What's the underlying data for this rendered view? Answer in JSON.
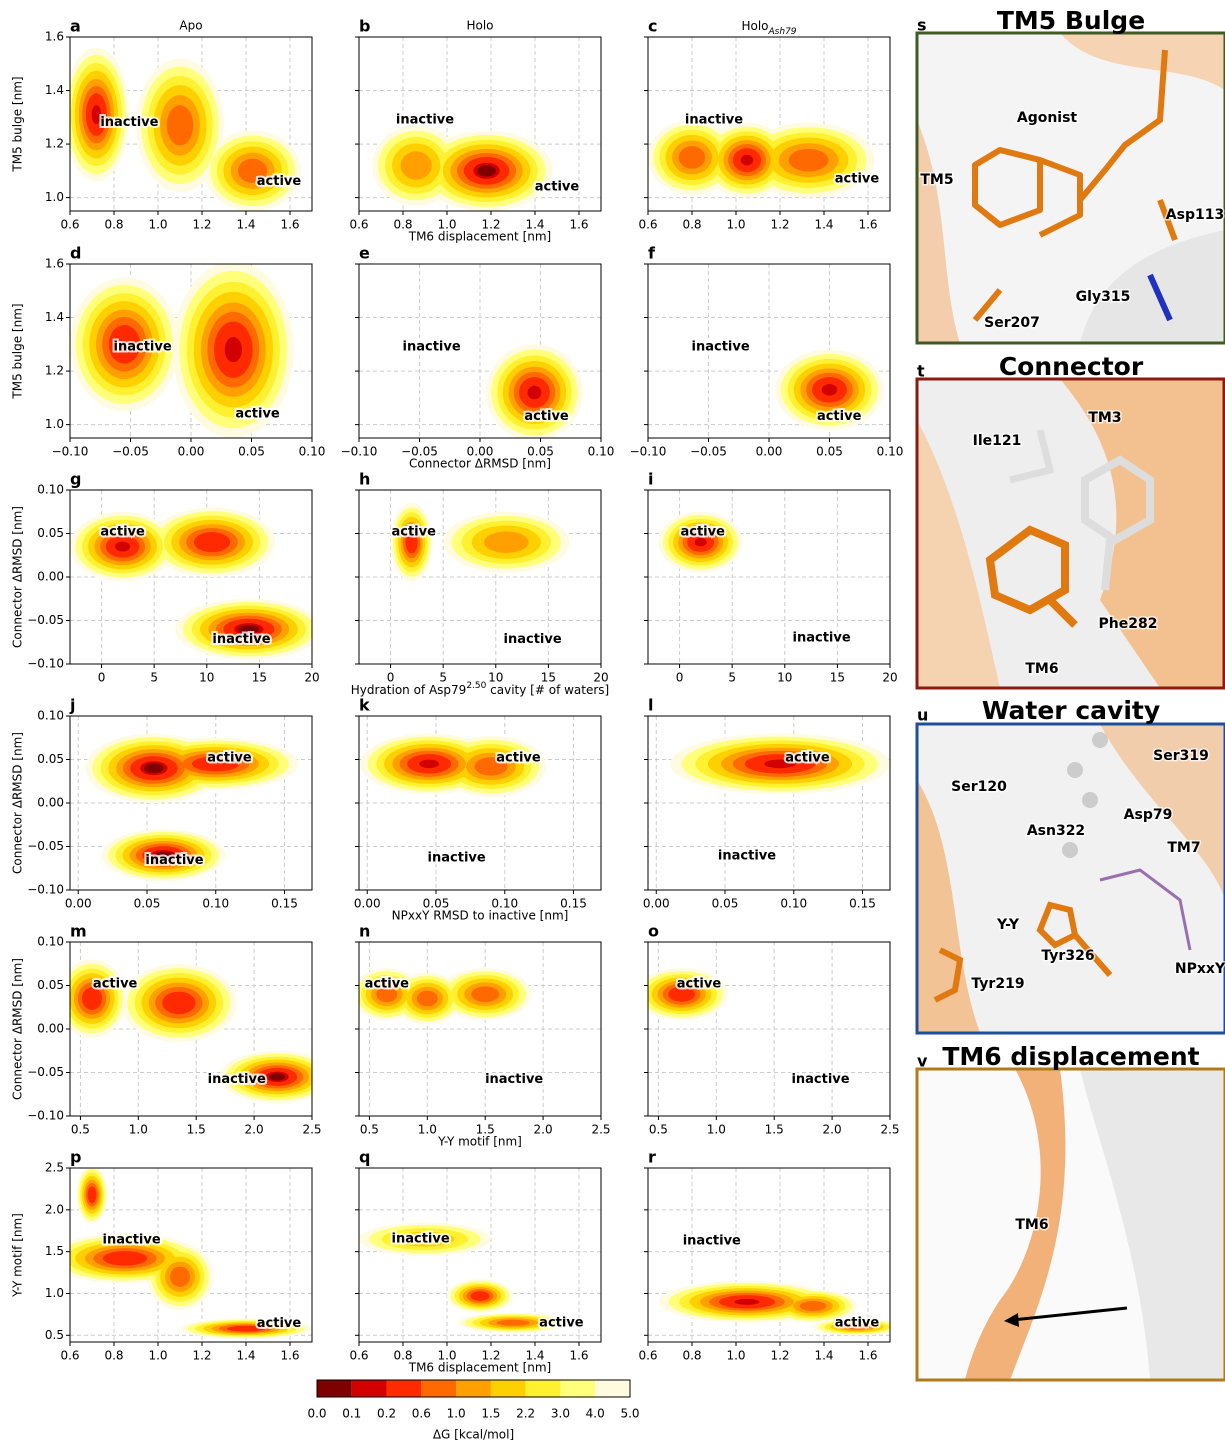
{
  "chart_data": [
    {
      "type": "contour",
      "letter": "a",
      "title": "Apo",
      "ylabel": "TM5 bulge [nm]",
      "xlim": [
        0.6,
        1.7
      ],
      "ylim": [
        0.95,
        1.6
      ],
      "xticks": [
        0.6,
        0.8,
        {
          "value": 1,
          "label": "1.0"
        },
        1.2,
        1.4,
        1.6
      ],
      "yticks": [
        {
          "value": 1,
          "label": "1.0"
        },
        1.2,
        1.4,
        1.6
      ],
      "grid": true,
      "basins": [
        {
          "x": 0.72,
          "y": 1.31,
          "rx": 0.15,
          "ry": 0.25,
          "min": 0.1
        },
        {
          "x": 1.1,
          "y": 1.27,
          "rx": 0.2,
          "ry": 0.25,
          "min": 0.6
        },
        {
          "x": 1.43,
          "y": 1.1,
          "rx": 0.22,
          "ry": 0.15,
          "min": 0.6
        }
      ],
      "annotations": [
        {
          "text": "inactive",
          "x": 0.87,
          "y": 1.28
        },
        {
          "text": "active",
          "x": 1.55,
          "y": 1.06
        }
      ]
    },
    {
      "type": "contour",
      "letter": "b",
      "title": "Holo",
      "xlabel": "TM6 displacement [nm]",
      "xlim": [
        0.6,
        1.7
      ],
      "xticks": [
        0.6,
        0.8,
        {
          "value": 1,
          "label": "1.0"
        },
        1.2,
        1.4,
        1.6
      ],
      "grid": true,
      "basins": [
        {
          "x": 0.86,
          "y": 1.12,
          "rx": 0.2,
          "ry": 0.15,
          "min": 1.0
        },
        {
          "x": 1.18,
          "y": 1.1,
          "rx": 0.3,
          "ry": 0.15,
          "min": 0.0
        }
      ],
      "annotations": [
        {
          "text": "inactive",
          "x": 0.9,
          "y": 1.29
        },
        {
          "text": "active",
          "x": 1.5,
          "y": 1.04
        }
      ]
    },
    {
      "type": "contour",
      "letter": "c",
      "title": [
        {
          "text": "Holo"
        },
        {
          "text": "Ash79",
          "sub": true
        }
      ],
      "xlim": [
        0.6,
        1.7
      ],
      "xticks": [
        0.6,
        0.8,
        {
          "value": 1,
          "label": "1.0"
        },
        1.2,
        1.4,
        1.6
      ],
      "grid": true,
      "basins": [
        {
          "x": 0.8,
          "y": 1.15,
          "rx": 0.2,
          "ry": 0.14,
          "min": 0.6
        },
        {
          "x": 1.05,
          "y": 1.14,
          "rx": 0.2,
          "ry": 0.14,
          "min": 0.1
        },
        {
          "x": 1.33,
          "y": 1.14,
          "rx": 0.3,
          "ry": 0.14,
          "min": 0.6
        }
      ],
      "annotations": [
        {
          "text": "inactive",
          "x": 0.9,
          "y": 1.29
        },
        {
          "text": "active",
          "x": 1.55,
          "y": 1.07
        }
      ]
    },
    {
      "type": "contour",
      "letter": "d",
      "ylabel": "TM5 bulge [nm]",
      "xlim": [
        -0.1,
        0.1
      ],
      "ylim": [
        0.95,
        1.6
      ],
      "xticks": [
        {
          "value": -0.1,
          "label": "−0.10"
        },
        {
          "value": -0.05,
          "label": "−0.05"
        },
        {
          "value": 0,
          "label": "0.00"
        },
        0.05,
        {
          "value": 0.1,
          "label": "0.10"
        }
      ],
      "yticks": [
        {
          "value": 1,
          "label": "1.0"
        },
        1.2,
        1.4,
        1.6
      ],
      "grid": true,
      "basins": [
        {
          "x": -0.055,
          "y": 1.3,
          "rx": 0.045,
          "ry": 0.25,
          "min": 0.2
        },
        {
          "x": 0.035,
          "y": 1.28,
          "rx": 0.05,
          "ry": 0.33,
          "min": 0.1
        }
      ],
      "annotations": [
        {
          "text": "inactive",
          "x": -0.04,
          "y": 1.29
        },
        {
          "text": "active",
          "x": 0.055,
          "y": 1.04
        }
      ]
    },
    {
      "type": "contour",
      "letter": "e",
      "xlabel": "Connector ΔRMSD [nm]",
      "xlim": [
        -0.1,
        0.1
      ],
      "xticks": [
        {
          "value": -0.1,
          "label": "−0.10"
        },
        {
          "value": -0.05,
          "label": "−0.05"
        },
        {
          "value": 0,
          "label": "0.00"
        },
        0.05,
        {
          "value": 0.1,
          "label": "0.10"
        }
      ],
      "grid": true,
      "basins": [
        {
          "x": 0.045,
          "y": 1.12,
          "rx": 0.04,
          "ry": 0.18,
          "min": 0.1
        }
      ],
      "annotations": [
        {
          "text": "inactive",
          "x": -0.04,
          "y": 1.29
        },
        {
          "text": "active",
          "x": 0.055,
          "y": 1.03
        }
      ]
    },
    {
      "type": "contour",
      "letter": "f",
      "xlim": [
        -0.1,
        0.1
      ],
      "xticks": [
        {
          "value": -0.1,
          "label": "−0.10"
        },
        {
          "value": -0.05,
          "label": "−0.05"
        },
        {
          "value": 0,
          "label": "0.00"
        },
        0.05,
        {
          "value": 0.1,
          "label": "0.10"
        }
      ],
      "grid": true,
      "basins": [
        {
          "x": 0.05,
          "y": 1.13,
          "rx": 0.045,
          "ry": 0.15,
          "min": 0.1
        }
      ],
      "annotations": [
        {
          "text": "inactive",
          "x": -0.04,
          "y": 1.29
        },
        {
          "text": "active",
          "x": 0.058,
          "y": 1.03
        }
      ]
    },
    {
      "type": "contour",
      "letter": "g",
      "ylabel": "Connector ΔRMSD [nm]",
      "xlim": [
        -3,
        20
      ],
      "ylim": [
        -0.1,
        0.1
      ],
      "xticks": [
        0,
        5,
        10,
        15,
        20
      ],
      "yticks": [
        {
          "value": -0.1,
          "label": "−0.10"
        },
        {
          "value": -0.05,
          "label": "−0.05"
        },
        {
          "value": 0,
          "label": "0.00"
        },
        0.05,
        {
          "value": 0.1,
          "label": "0.10"
        }
      ],
      "grid": true,
      "basins": [
        {
          "x": 2,
          "y": 0.035,
          "rx": 5,
          "ry": 0.04,
          "min": 0.1
        },
        {
          "x": 10.5,
          "y": 0.04,
          "rx": 6,
          "ry": 0.04,
          "min": 0.2
        },
        {
          "x": 14,
          "y": -0.06,
          "rx": 7,
          "ry": 0.035,
          "min": 0.0
        }
      ],
      "annotations": [
        {
          "text": "active",
          "x": 2,
          "y": 0.052
        },
        {
          "text": "inactive",
          "x": 13.3,
          "y": -0.072
        }
      ]
    },
    {
      "type": "contour",
      "letter": "h",
      "xlabel": [
        {
          "text": "Hydration of Asp79"
        },
        {
          "text": "2.50",
          "sup": true
        },
        {
          "text": " cavity [# of waters]"
        }
      ],
      "xlim": [
        -3,
        20
      ],
      "xticks": [
        0,
        5,
        10,
        15,
        20
      ],
      "grid": true,
      "basins": [
        {
          "x": 2,
          "y": 0.04,
          "rx": 2,
          "ry": 0.045,
          "min": 0.2
        },
        {
          "x": 11,
          "y": 0.04,
          "rx": 6,
          "ry": 0.035,
          "min": 1.0
        }
      ],
      "annotations": [
        {
          "text": "active",
          "x": 2.2,
          "y": 0.052
        },
        {
          "text": "inactive",
          "x": 13.5,
          "y": -0.072
        }
      ]
    },
    {
      "type": "contour",
      "letter": "i",
      "xlim": [
        -3,
        20
      ],
      "xticks": [
        0,
        5,
        10,
        15,
        20
      ],
      "grid": true,
      "basins": [
        {
          "x": 2,
          "y": 0.04,
          "rx": 4,
          "ry": 0.035,
          "min": 0.1
        }
      ],
      "annotations": [
        {
          "text": "active",
          "x": 2.2,
          "y": 0.052
        },
        {
          "text": "inactive",
          "x": 13.5,
          "y": -0.07
        }
      ]
    },
    {
      "type": "contour",
      "letter": "j",
      "ylabel": "Connector ΔRMSD [nm]",
      "xlim": [
        -0.006,
        0.17
      ],
      "ylim": [
        -0.1,
        0.1
      ],
      "xticks": [
        {
          "value": 0,
          "label": "0.00"
        },
        0.05,
        {
          "value": 0.1,
          "label": "0.10"
        },
        0.15
      ],
      "yticks": [
        {
          "value": -0.1,
          "label": "−0.10"
        },
        {
          "value": -0.05,
          "label": "−0.05"
        },
        {
          "value": 0,
          "label": "0.00"
        },
        0.05,
        {
          "value": 0.1,
          "label": "0.10"
        }
      ],
      "grid": true,
      "basins": [
        {
          "x": 0.055,
          "y": 0.04,
          "rx": 0.05,
          "ry": 0.04,
          "min": 0.0
        },
        {
          "x": 0.1,
          "y": 0.045,
          "rx": 0.06,
          "ry": 0.03,
          "min": 0.2
        },
        {
          "x": 0.062,
          "y": -0.06,
          "rx": 0.045,
          "ry": 0.03,
          "min": 0.0
        }
      ],
      "annotations": [
        {
          "text": "active",
          "x": 0.11,
          "y": 0.052
        },
        {
          "text": "inactive",
          "x": 0.07,
          "y": -0.066
        }
      ]
    },
    {
      "type": "contour",
      "letter": "k",
      "xlabel": "NPxxY RMSD to inactive [nm]",
      "xlim": [
        -0.006,
        0.17
      ],
      "xticks": [
        {
          "value": 0,
          "label": "0.00"
        },
        0.05,
        {
          "value": 0.1,
          "label": "0.10"
        },
        0.15
      ],
      "grid": true,
      "basins": [
        {
          "x": 0.045,
          "y": 0.045,
          "rx": 0.05,
          "ry": 0.035,
          "min": 0.1
        },
        {
          "x": 0.09,
          "y": 0.042,
          "rx": 0.04,
          "ry": 0.035,
          "min": 0.6
        }
      ],
      "annotations": [
        {
          "text": "active",
          "x": 0.11,
          "y": 0.052
        },
        {
          "text": "inactive",
          "x": 0.065,
          "y": -0.063
        }
      ]
    },
    {
      "type": "contour",
      "letter": "l",
      "xlim": [
        -0.006,
        0.17
      ],
      "xticks": [
        {
          "value": 0,
          "label": "0.00"
        },
        0.05,
        {
          "value": 0.1,
          "label": "0.10"
        },
        0.15
      ],
      "grid": true,
      "basins": [
        {
          "x": 0.09,
          "y": 0.045,
          "rx": 0.08,
          "ry": 0.035,
          "min": 0.1
        }
      ],
      "annotations": [
        {
          "text": "active",
          "x": 0.11,
          "y": 0.052
        },
        {
          "text": "inactive",
          "x": 0.066,
          "y": -0.061
        }
      ]
    },
    {
      "type": "contour",
      "letter": "m",
      "ylabel": "Connector ΔRMSD [nm]",
      "xlim": [
        0.41,
        2.5
      ],
      "ylim": [
        -0.1,
        0.1
      ],
      "xticks": [
        0.5,
        {
          "value": 1,
          "label": "1.0"
        },
        1.5,
        {
          "value": 2,
          "label": "2.0"
        },
        2.5
      ],
      "yticks": [
        {
          "value": -0.1,
          "label": "−0.10"
        },
        {
          "value": -0.05,
          "label": "−0.05"
        },
        {
          "value": 0,
          "label": "0.00"
        },
        0.05,
        {
          "value": 0.1,
          "label": "0.10"
        }
      ],
      "grid": true,
      "basins": [
        {
          "x": 0.6,
          "y": 0.035,
          "rx": 0.3,
          "ry": 0.045,
          "min": 0.2
        },
        {
          "x": 1.35,
          "y": 0.03,
          "rx": 0.5,
          "ry": 0.045,
          "min": 0.2
        },
        {
          "x": 2.2,
          "y": -0.055,
          "rx": 0.5,
          "ry": 0.03,
          "min": 0.0
        }
      ],
      "annotations": [
        {
          "text": "active",
          "x": 0.8,
          "y": 0.052
        },
        {
          "text": "inactive",
          "x": 1.85,
          "y": -0.058
        }
      ]
    },
    {
      "type": "contour",
      "letter": "n",
      "xlabel": "Y-Y motif [nm]",
      "xlim": [
        0.41,
        2.5
      ],
      "xticks": [
        0.5,
        {
          "value": 1,
          "label": "1.0"
        },
        1.5,
        {
          "value": 2,
          "label": "2.0"
        },
        2.5
      ],
      "grid": true,
      "basins": [
        {
          "x": 0.65,
          "y": 0.04,
          "rx": 0.3,
          "ry": 0.03,
          "min": 0.6
        },
        {
          "x": 1.0,
          "y": 0.035,
          "rx": 0.3,
          "ry": 0.03,
          "min": 0.6
        },
        {
          "x": 1.5,
          "y": 0.04,
          "rx": 0.4,
          "ry": 0.03,
          "min": 0.6
        }
      ],
      "annotations": [
        {
          "text": "active",
          "x": 0.65,
          "y": 0.052
        },
        {
          "text": "inactive",
          "x": 1.75,
          "y": -0.058
        }
      ]
    },
    {
      "type": "contour",
      "letter": "o",
      "xlim": [
        0.41,
        2.5
      ],
      "xticks": [
        0.5,
        {
          "value": 1,
          "label": "1.0"
        },
        1.5,
        {
          "value": 2,
          "label": "2.0"
        },
        2.5
      ],
      "grid": true,
      "basins": [
        {
          "x": 0.7,
          "y": 0.04,
          "rx": 0.4,
          "ry": 0.03,
          "min": 0.2
        }
      ],
      "annotations": [
        {
          "text": "active",
          "x": 0.85,
          "y": 0.052
        },
        {
          "text": "inactive",
          "x": 1.9,
          "y": -0.058
        }
      ]
    },
    {
      "type": "contour",
      "letter": "p",
      "ylabel": "Y-Y motif [nm]",
      "xlim": [
        0.6,
        1.7
      ],
      "ylim": [
        0.42,
        2.5
      ],
      "xticks": [
        0.6,
        0.8,
        {
          "value": 1,
          "label": "1.0"
        },
        1.2,
        1.4,
        1.6
      ],
      "yticks": [
        0.5,
        {
          "value": 1,
          "label": "1.0"
        },
        1.5,
        {
          "value": 2,
          "label": "2.0"
        },
        2.5
      ],
      "grid": true,
      "basins": [
        {
          "x": 0.7,
          "y": 2.18,
          "rx": 0.07,
          "ry": 0.35,
          "min": 0.2
        },
        {
          "x": 0.85,
          "y": 1.42,
          "rx": 0.35,
          "ry": 0.3,
          "min": 0.2
        },
        {
          "x": 1.1,
          "y": 1.2,
          "rx": 0.15,
          "ry": 0.4,
          "min": 0.6
        },
        {
          "x": 1.4,
          "y": 0.58,
          "rx": 0.3,
          "ry": 0.12,
          "min": 0.2
        }
      ],
      "annotations": [
        {
          "text": "inactive",
          "x": 0.88,
          "y": 1.64
        },
        {
          "text": "active",
          "x": 1.55,
          "y": 0.64
        }
      ]
    },
    {
      "type": "contour",
      "letter": "q",
      "xlabel": "TM6 displacement [nm]",
      "xlim": [
        0.6,
        1.7
      ],
      "xticks": [
        0.6,
        0.8,
        {
          "value": 1,
          "label": "1.0"
        },
        1.2,
        1.4,
        1.6
      ],
      "grid": true,
      "basins": [
        {
          "x": 0.9,
          "y": 1.65,
          "rx": 0.3,
          "ry": 0.2,
          "min": 1.5
        },
        {
          "x": 1.15,
          "y": 0.97,
          "rx": 0.15,
          "ry": 0.2,
          "min": 0.2
        },
        {
          "x": 1.3,
          "y": 0.65,
          "rx": 0.25,
          "ry": 0.12,
          "min": 0.6
        }
      ],
      "annotations": [
        {
          "text": "inactive",
          "x": 0.88,
          "y": 1.65
        },
        {
          "text": "active",
          "x": 1.52,
          "y": 0.65
        }
      ]
    },
    {
      "type": "contour",
      "letter": "r",
      "xlim": [
        0.6,
        1.7
      ],
      "xticks": [
        0.6,
        0.8,
        {
          "value": 1,
          "label": "1.0"
        },
        1.2,
        1.4,
        1.6
      ],
      "grid": true,
      "basins": [
        {
          "x": 1.05,
          "y": 0.9,
          "rx": 0.4,
          "ry": 0.25,
          "min": 0.1
        },
        {
          "x": 1.35,
          "y": 0.85,
          "rx": 0.2,
          "ry": 0.2,
          "min": 0.6
        },
        {
          "x": 1.55,
          "y": 0.6,
          "rx": 0.2,
          "ry": 0.1,
          "min": 0.6
        }
      ],
      "annotations": [
        {
          "text": "inactive",
          "x": 0.89,
          "y": 1.63
        },
        {
          "text": "active",
          "x": 1.55,
          "y": 0.65
        }
      ]
    }
  ],
  "colorbar": {
    "label": "ΔG [kcal/mol]",
    "levels": [
      {
        "value": 0,
        "label": "0.0"
      },
      0.1,
      0.2,
      0.6,
      {
        "value": 1,
        "label": "1.0"
      },
      1.5,
      2.2,
      {
        "value": 3,
        "label": "3.0"
      },
      {
        "value": 4,
        "label": "4.0"
      },
      {
        "value": 5,
        "label": "5.0"
      }
    ],
    "colors": [
      "#7f0000",
      "#d20000",
      "#ff2a00",
      "#ff6a00",
      "#ffa000",
      "#ffd000",
      "#fff030",
      "#ffff7a",
      "#fffbe0"
    ]
  },
  "structures": [
    {
      "letter": "s",
      "title": "TM5 Bulge",
      "labels": [
        "Agonist",
        "TM5",
        "Asp113",
        "Gly315",
        "Ser207"
      ]
    },
    {
      "letter": "t",
      "title": "Connector",
      "labels": [
        "Ile121",
        "TM3",
        "Phe282",
        "TM6"
      ]
    },
    {
      "letter": "u",
      "title": "Water cavity",
      "labels": [
        "Ser319",
        "Ser120",
        "Asp79",
        "Asn322",
        "TM7",
        "Y-Y",
        "Tyr326",
        "NPxxY",
        "Tyr219"
      ]
    },
    {
      "letter": "v",
      "title": "TM6 displacement",
      "labels": [
        "TM6"
      ]
    }
  ]
}
